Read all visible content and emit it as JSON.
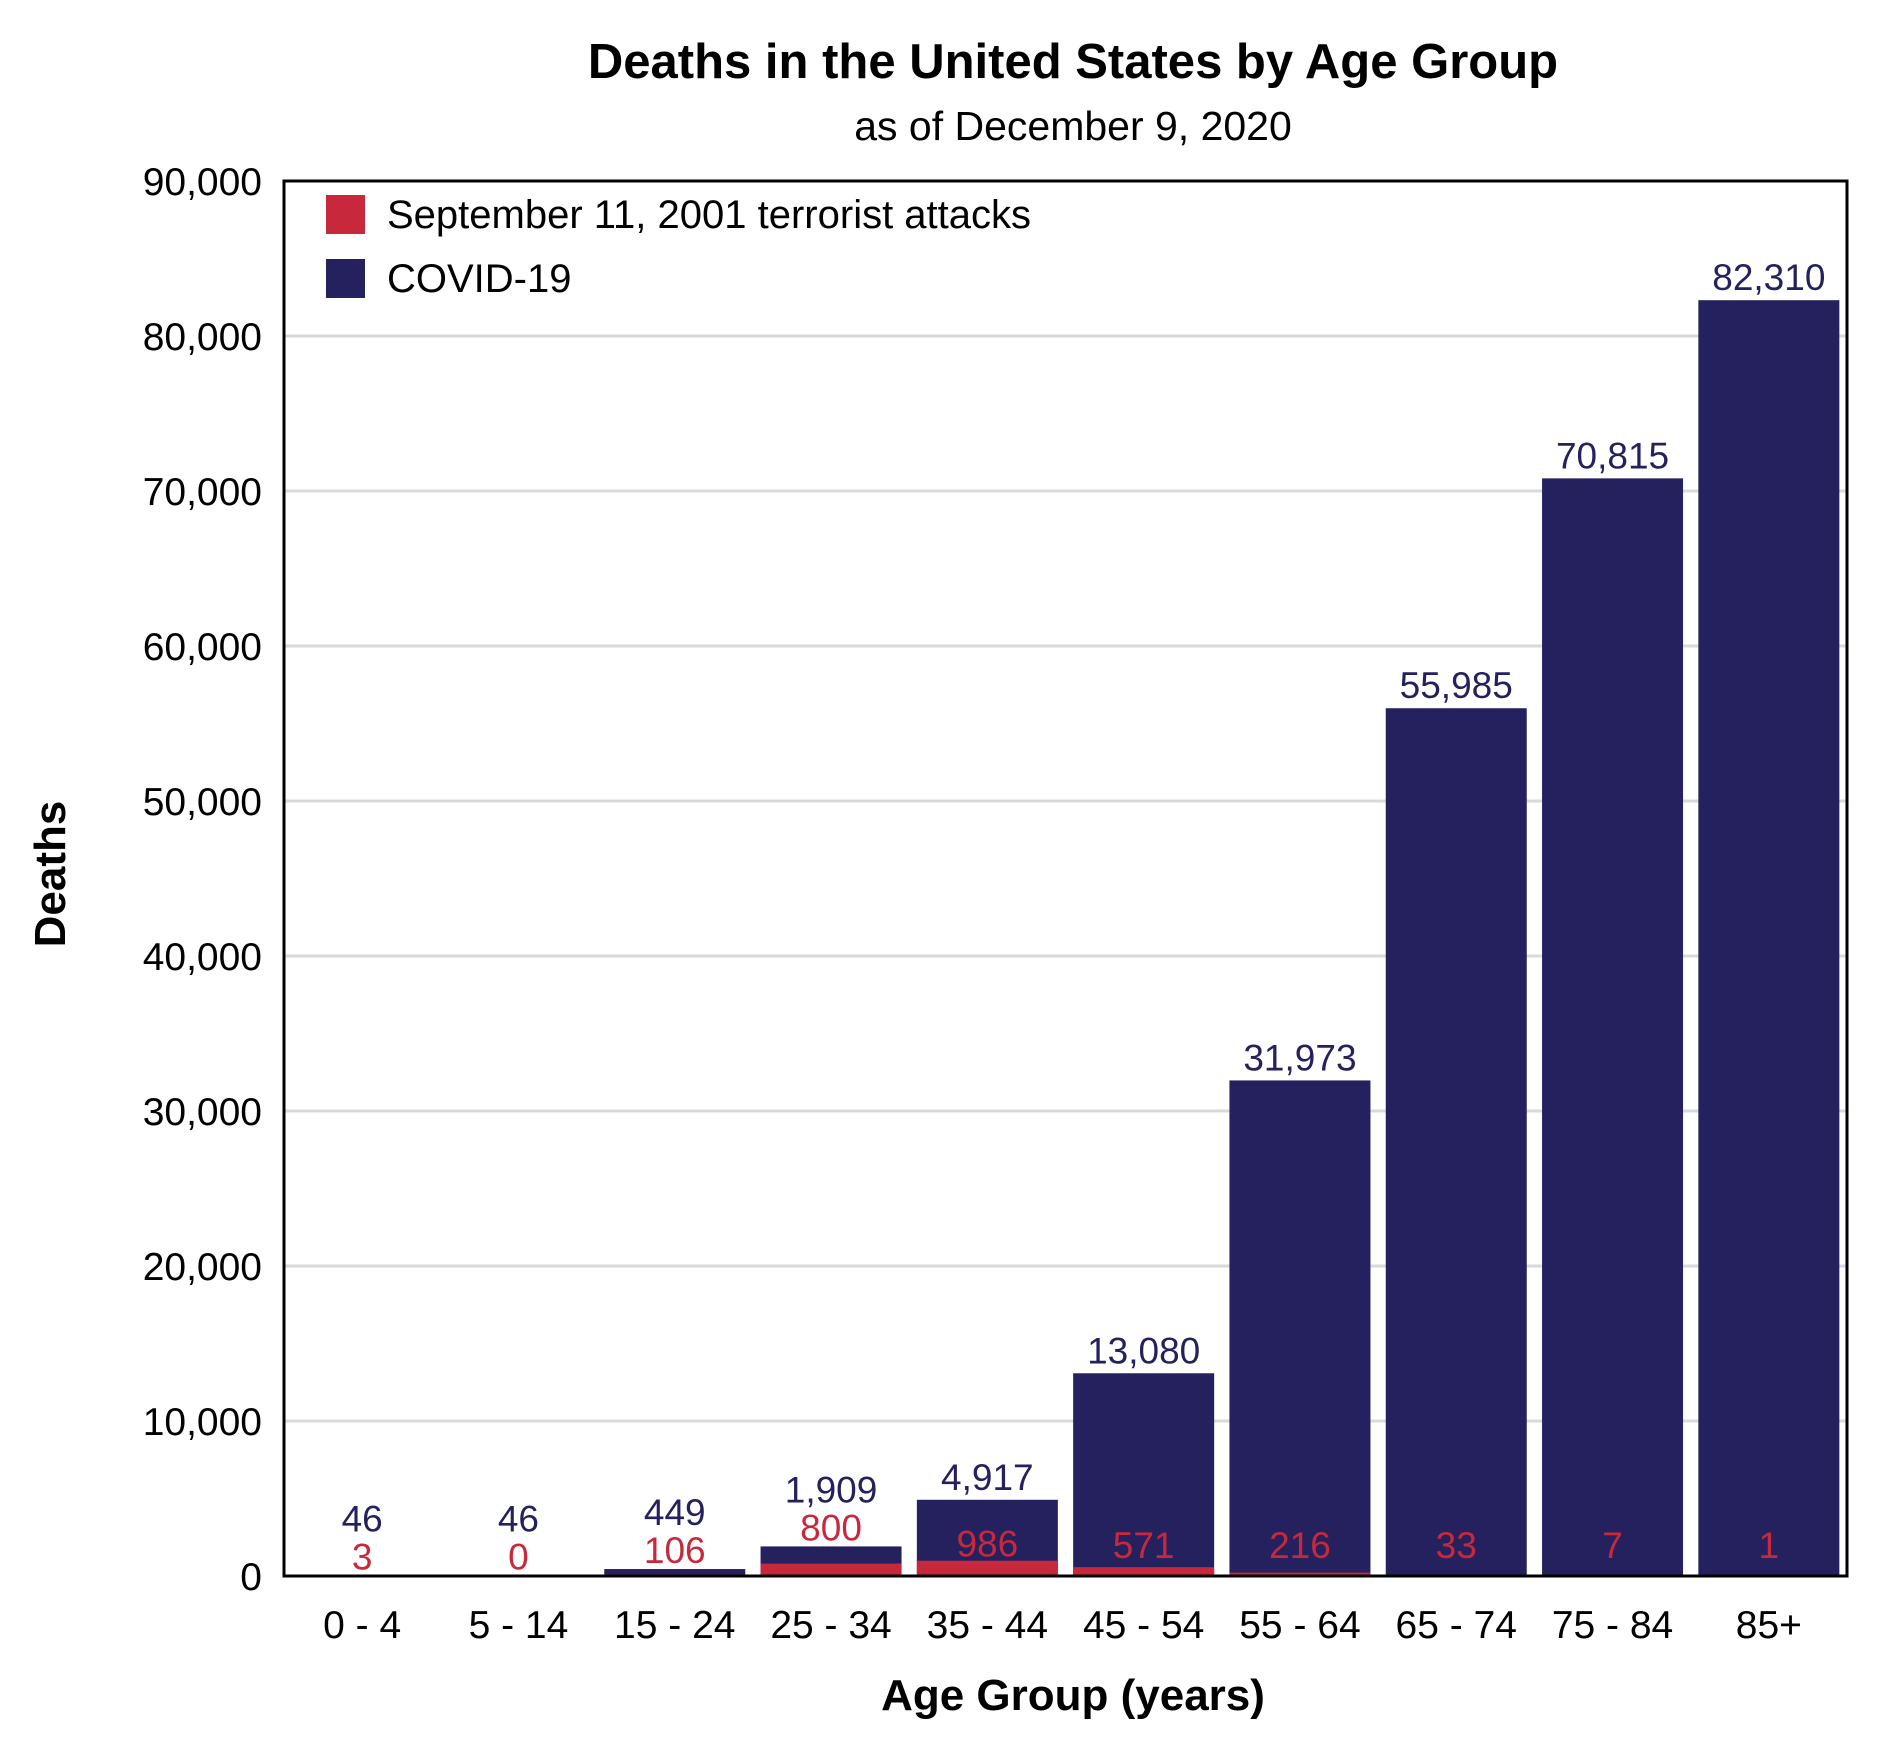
{
  "chart_data": {
    "type": "bar",
    "title": "Deaths in the United States by Age Group",
    "subtitle": "as of December 9, 2020",
    "xlabel": "Age Group (years)",
    "ylabel": "Deaths",
    "ylim": [
      0,
      90000
    ],
    "yticks": [
      0,
      10000,
      20000,
      30000,
      40000,
      50000,
      60000,
      70000,
      80000,
      90000
    ],
    "ytick_labels": [
      "0",
      "10,000",
      "20,000",
      "30,000",
      "40,000",
      "50,000",
      "60,000",
      "70,000",
      "80,000",
      "90,000"
    ],
    "grid": true,
    "legend_position": "top-left",
    "categories": [
      "0 - 4",
      "5 - 14",
      "15 - 24",
      "25 - 34",
      "35 - 44",
      "45 - 54",
      "55 - 64",
      "65 - 74",
      "75 - 84",
      "85+"
    ],
    "series": [
      {
        "name": "COVID-19",
        "color": "#25215e",
        "label_color": "#25215e",
        "values": [
          46,
          46,
          449,
          1909,
          4917,
          13080,
          31973,
          55985,
          70815,
          82310
        ],
        "labels": [
          "46",
          "46",
          "449",
          "1,909",
          "4,917",
          "13,080",
          "31,973",
          "55,985",
          "70,815",
          "82,310"
        ]
      },
      {
        "name": "September 11, 2001 terrorist attacks",
        "color": "#c8283c",
        "label_color": "#c8283c",
        "values": [
          3,
          0,
          106,
          800,
          986,
          571,
          216,
          33,
          7,
          1
        ],
        "labels": [
          "3",
          "0",
          "106",
          "800",
          "986",
          "571",
          "216",
          "33",
          "7",
          "1"
        ]
      }
    ],
    "legend_order": [
      1,
      0
    ]
  }
}
